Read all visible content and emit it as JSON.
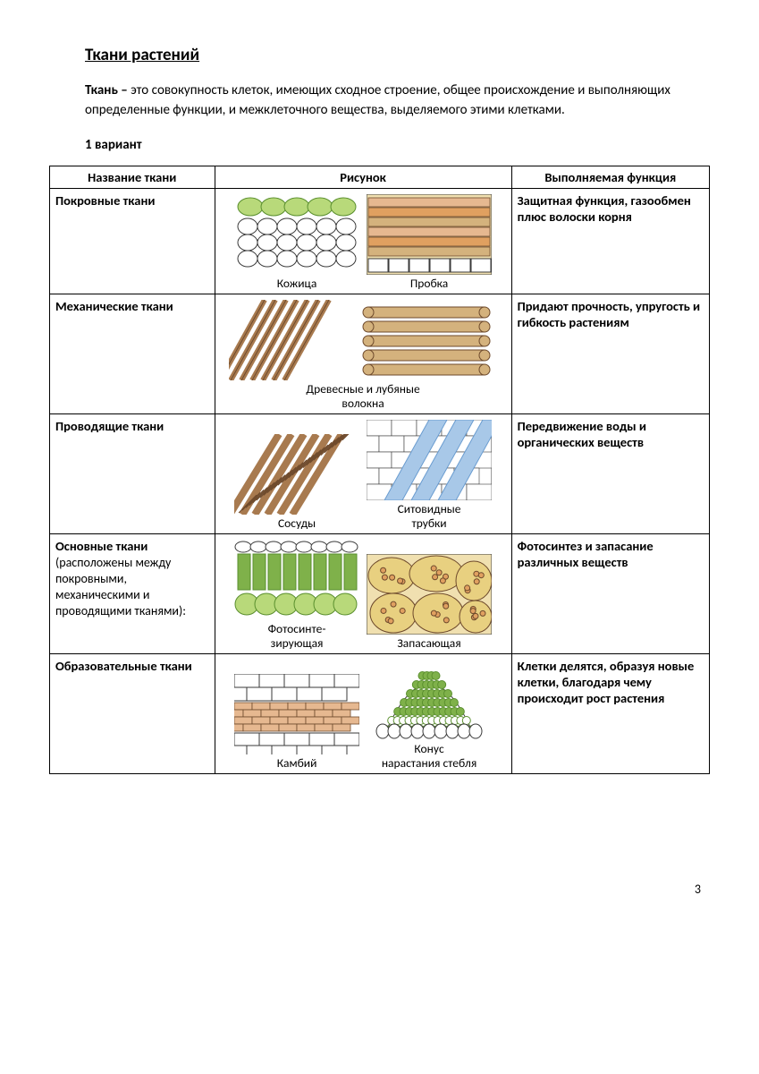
{
  "title": "Ткани растений",
  "definition": {
    "term": "Ткань – ",
    "text": "это совокупность клеток, имеющих сходное строение, общее происхождение и выполняющих определенные функции, и межклеточного вещества, выделяемого этими клетками."
  },
  "variant": "1 вариант",
  "columns": [
    "Название ткани",
    "Рисунок",
    "Выполняемая функция"
  ],
  "rows": [
    {
      "name": "Покровные ткани",
      "sub": "",
      "func": "Защитная функция, газообмен\n плюс волоски корня",
      "figs": [
        {
          "label": "Кожица",
          "kind": "kozhica"
        },
        {
          "label": "Пробка",
          "kind": "probka"
        }
      ]
    },
    {
      "name": "Механические ткани",
      "sub": "",
      "func": "Придают прочность, упругость и гибкость растениям",
      "figs": [
        {
          "label": "Древесные и лубяные\nволокна",
          "kind": "volokna_wide"
        }
      ]
    },
    {
      "name": "Проводящие ткани",
      "sub": "",
      "func": "Передвижение  воды и\nорганических веществ",
      "figs": [
        {
          "label": "Сосуды",
          "kind": "sosudy"
        },
        {
          "label": "Ситовидные\nтрубки",
          "kind": "sito"
        }
      ]
    },
    {
      "name": "Основные ткани",
      "sub": " (расположены между покровными, механическими и проводящими тканями):",
      "func": "Фотосинтез и запасание различных веществ",
      "figs": [
        {
          "label": "Фотосинте-\nзирующая",
          "kind": "foto"
        },
        {
          "label": "Запасающая",
          "kind": "zapas"
        }
      ]
    },
    {
      "name": "Образовательные ткани",
      "sub": "",
      "func": " Клетки делятся, образуя новые клетки, благодаря чему происходит рост растения",
      "figs": [
        {
          "label": "Камбий",
          "kind": "kambiy"
        },
        {
          "label": "Конус\nнарастания стебля",
          "kind": "konus"
        }
      ]
    }
  ],
  "page": "3",
  "fig_size": {
    "w": 140,
    "h": 90,
    "w_wide": 300
  },
  "palette": {
    "green_light": "#b8d97a",
    "green_dark": "#5a8f2e",
    "green_cell": "#7fb14a",
    "brown": "#a87a4f",
    "brown_dark": "#6e4a2c",
    "brown_light": "#d4b27d",
    "orange": "#e0a060",
    "salmon": "#e6b890",
    "blue": "#a8c8e8",
    "blue_line": "#6a9cd0",
    "yellow": "#e8d080",
    "cream": "#f0e0b0",
    "outline": "#3a3a3a",
    "white": "#ffffff"
  }
}
